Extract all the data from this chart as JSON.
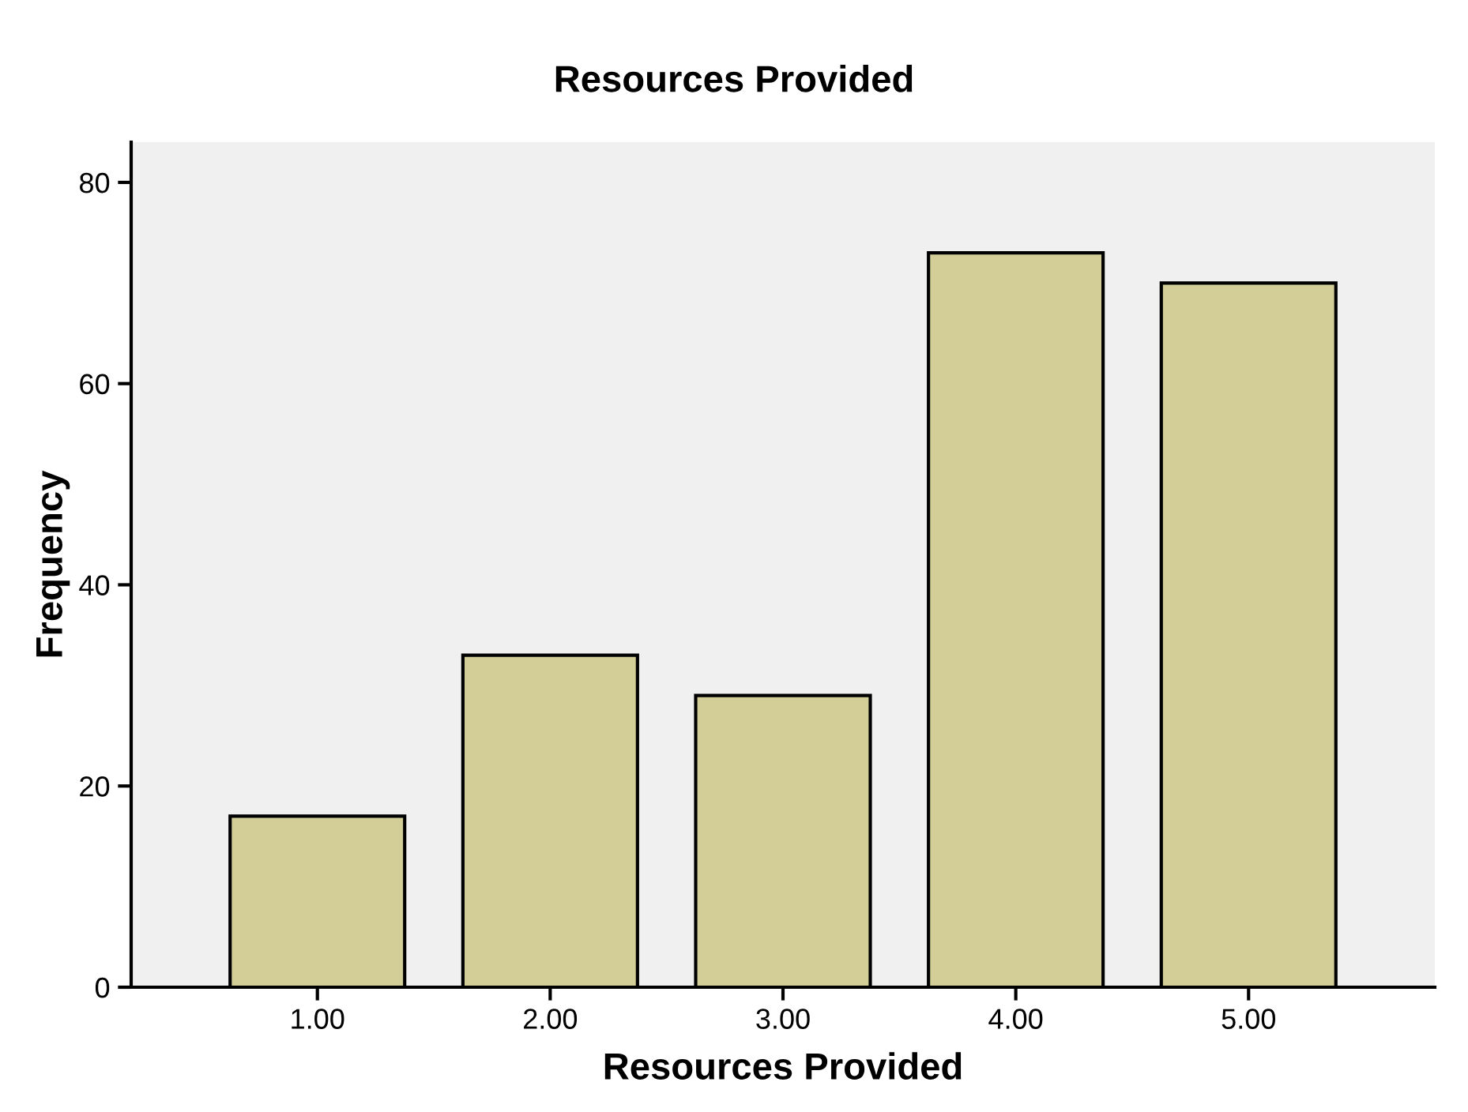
{
  "chart_data": {
    "type": "bar",
    "title": "Resources Provided",
    "xlabel": "Resources Provided",
    "ylabel": "Frequency",
    "categories": [
      "1.00",
      "2.00",
      "3.00",
      "4.00",
      "5.00"
    ],
    "values": [
      17,
      33,
      29,
      73,
      70
    ],
    "color": "#d3ce97",
    "ylim": [
      0,
      84
    ],
    "yticks": [
      0,
      20,
      40,
      60,
      80
    ],
    "grid": false
  }
}
